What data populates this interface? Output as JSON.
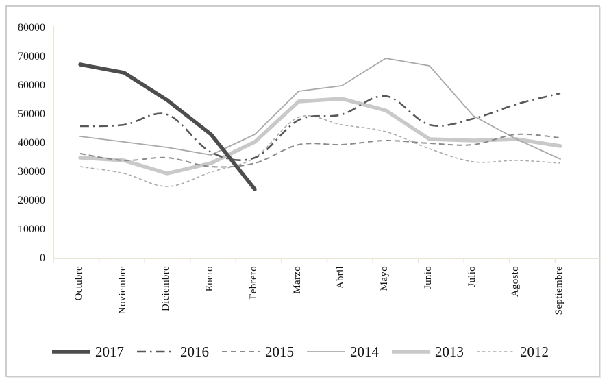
{
  "chart_data": {
    "type": "line",
    "title": "",
    "xlabel": "",
    "ylabel": "",
    "categories": [
      "Octubre",
      "Noviembre",
      "Diciembre",
      "Enero",
      "Febrero",
      "Marzo",
      "Abril",
      "Mayo",
      "Junio",
      "Julio",
      "Agosto",
      "Septiembre"
    ],
    "series": [
      {
        "name": "2017",
        "line_style": "thick-solid",
        "color": "#4d4d4d",
        "stroke_width": 5.5,
        "smooth": false,
        "values": [
          67500,
          64500,
          55000,
          43000,
          24000,
          null,
          null,
          null,
          null,
          null,
          null,
          null
        ]
      },
      {
        "name": "2016",
        "line_style": "dash-dot",
        "color": "#585858",
        "stroke_width": 2.6,
        "smooth": true,
        "values": [
          46000,
          46500,
          50000,
          37000,
          35000,
          48000,
          50000,
          56500,
          46500,
          48500,
          53500,
          57500
        ]
      },
      {
        "name": "2015",
        "line_style": "dashed",
        "color": "#8a8a8a",
        "stroke_width": 2,
        "smooth": true,
        "values": [
          36500,
          34000,
          35000,
          32000,
          33000,
          39500,
          39500,
          41000,
          40000,
          39500,
          43000,
          42000
        ]
      },
      {
        "name": "2014",
        "line_style": "thin-solid",
        "color": "#a9a9a9",
        "stroke_width": 1.8,
        "smooth": false,
        "values": [
          42500,
          40500,
          38500,
          36000,
          43000,
          58000,
          60000,
          69500,
          67000,
          49500,
          41500,
          34500
        ]
      },
      {
        "name": "2013",
        "line_style": "thick-solid",
        "color": "#c9c9c9",
        "stroke_width": 5.5,
        "smooth": false,
        "values": [
          35000,
          34000,
          29500,
          33000,
          40500,
          54500,
          55500,
          51500,
          41500,
          41000,
          41500,
          39000
        ]
      },
      {
        "name": "2012",
        "line_style": "fine-dashed",
        "color": "#ababab",
        "stroke_width": 1.6,
        "smooth": true,
        "values": [
          32000,
          29500,
          25000,
          30000,
          35000,
          49000,
          46500,
          44000,
          38000,
          33500,
          34000,
          33000
        ]
      }
    ],
    "ylim": [
      0,
      80000
    ],
    "yticks": [
      80000,
      70000,
      60000,
      50000,
      40000,
      30000,
      20000,
      10000,
      0
    ],
    "grid": false,
    "legend_position": "bottom",
    "axis_color": "#e9e5d5",
    "text_color": "#141414"
  }
}
